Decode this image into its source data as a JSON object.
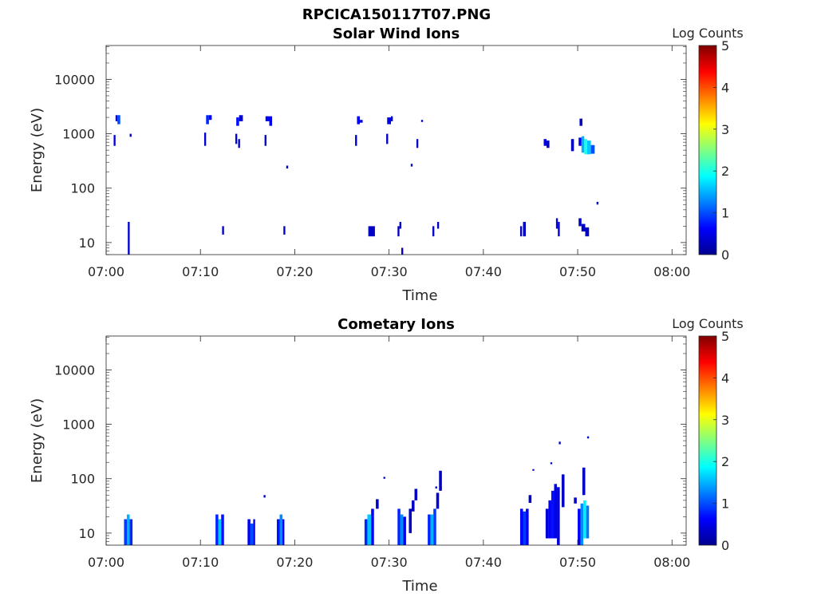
{
  "figure": {
    "filename": "RPCICA150117T07.PNG"
  },
  "colors": {
    "colormap": [
      "#00008f",
      "#0000ff",
      "#0080ff",
      "#00ffff",
      "#80ff80",
      "#ffff00",
      "#ff8000",
      "#ff0000",
      "#800000"
    ]
  },
  "chart_data": [
    {
      "type": "heatmap",
      "title": "Solar Wind Ions",
      "xlabel": "Time",
      "ylabel": "Energy (eV)",
      "colorbar_label": "Log Counts",
      "x_unit": "minutes after 07:00",
      "xlim": [
        0,
        61.5
      ],
      "ylim": [
        6,
        42000
      ],
      "y_scale": "log",
      "clim": [
        0,
        5
      ],
      "x_ticks": [
        0,
        10,
        20,
        30,
        40,
        50,
        60
      ],
      "x_tick_labels": [
        "07:00",
        "07:10",
        "07:20",
        "07:30",
        "07:40",
        "07:50",
        "08:00"
      ],
      "y_ticks": [
        10,
        100,
        1000,
        10000
      ],
      "y_tick_labels": [
        "10",
        "100",
        "1000",
        "10000"
      ],
      "cbar_ticks": [
        0,
        1,
        2,
        3,
        4,
        5
      ],
      "cbar_tick_labels": [
        "0",
        "1",
        "2",
        "3",
        "4",
        "5"
      ],
      "cells": [
        [
          1.0,
          1.2,
          1700,
          2200,
          0.6
        ],
        [
          1.2,
          1.5,
          1500,
          2200,
          1.0
        ],
        [
          0.8,
          1.0,
          600,
          950,
          0.5
        ],
        [
          2.5,
          2.7,
          880,
          1000,
          0.4
        ],
        [
          2.3,
          2.5,
          6,
          24,
          0.4
        ],
        [
          10.6,
          10.9,
          1500,
          2200,
          0.8
        ],
        [
          10.9,
          11.2,
          1800,
          2200,
          0.5
        ],
        [
          10.4,
          10.6,
          600,
          1050,
          0.4
        ],
        [
          12.3,
          12.5,
          14,
          20,
          0.3
        ],
        [
          13.8,
          14.1,
          1400,
          2000,
          0.7
        ],
        [
          14.1,
          14.5,
          1700,
          2200,
          0.4
        ],
        [
          13.7,
          13.9,
          650,
          1000,
          0.4
        ],
        [
          14.0,
          14.2,
          550,
          800,
          0.3
        ],
        [
          16.9,
          17.3,
          1700,
          2100,
          0.6
        ],
        [
          17.3,
          17.6,
          1400,
          2100,
          0.5
        ],
        [
          16.8,
          17.0,
          600,
          950,
          0.3
        ],
        [
          18.8,
          19.0,
          14,
          20,
          0.3
        ],
        [
          19.1,
          19.3,
          230,
          260,
          0.3
        ],
        [
          26.6,
          26.9,
          1500,
          2100,
          0.6
        ],
        [
          26.9,
          27.2,
          1600,
          1800,
          0.4
        ],
        [
          26.4,
          26.6,
          600,
          950,
          0.3
        ],
        [
          27.8,
          28.5,
          13,
          20,
          0.3
        ],
        [
          29.8,
          30.2,
          1500,
          2000,
          0.5
        ],
        [
          30.2,
          30.4,
          1700,
          2100,
          0.4
        ],
        [
          29.7,
          29.9,
          650,
          1000,
          0.3
        ],
        [
          30.9,
          31.1,
          13,
          20,
          0.3
        ],
        [
          31.1,
          31.3,
          18,
          24,
          0.3
        ],
        [
          31.3,
          31.5,
          6,
          8,
          0.3
        ],
        [
          32.3,
          32.5,
          250,
          280,
          0.3
        ],
        [
          32.9,
          33.1,
          550,
          800,
          0.3
        ],
        [
          33.4,
          33.6,
          1650,
          1800,
          0.3
        ],
        [
          34.6,
          34.8,
          13,
          20,
          0.3
        ],
        [
          35.1,
          35.3,
          18,
          24,
          0.3
        ],
        [
          43.9,
          44.1,
          13,
          20,
          0.3
        ],
        [
          44.2,
          44.5,
          13,
          24,
          0.3
        ],
        [
          46.4,
          46.7,
          600,
          800,
          0.4
        ],
        [
          46.7,
          47.0,
          550,
          750,
          0.3
        ],
        [
          47.7,
          47.9,
          18,
          28,
          0.4
        ],
        [
          47.9,
          48.1,
          13,
          24,
          0.3
        ],
        [
          49.3,
          49.6,
          480,
          800,
          0.3
        ],
        [
          50.2,
          50.5,
          1400,
          1900,
          0.3
        ],
        [
          50.1,
          50.4,
          600,
          850,
          0.6
        ],
        [
          50.4,
          50.7,
          450,
          900,
          1.5
        ],
        [
          50.7,
          51.0,
          420,
          800,
          2.0
        ],
        [
          51.0,
          51.4,
          420,
          750,
          1.6
        ],
        [
          51.4,
          51.8,
          430,
          620,
          1.0
        ],
        [
          50.1,
          50.4,
          20,
          28,
          0.3
        ],
        [
          50.4,
          50.8,
          16,
          22,
          0.3
        ],
        [
          50.8,
          51.2,
          13,
          19,
          0.3
        ],
        [
          52.0,
          52.2,
          50,
          56,
          0.3
        ]
      ]
    },
    {
      "type": "heatmap",
      "title": "Cometary Ions",
      "xlabel": "Time",
      "ylabel": "Energy (eV)",
      "colorbar_label": "Log Counts",
      "x_unit": "minutes after 07:00",
      "xlim": [
        0,
        61.5
      ],
      "ylim": [
        6,
        42000
      ],
      "y_scale": "log",
      "clim": [
        0,
        5
      ],
      "x_ticks": [
        0,
        10,
        20,
        30,
        40,
        50,
        60
      ],
      "x_tick_labels": [
        "07:00",
        "07:10",
        "07:20",
        "07:30",
        "07:40",
        "07:50",
        "08:00"
      ],
      "y_ticks": [
        10,
        100,
        1000,
        10000
      ],
      "y_tick_labels": [
        "10",
        "100",
        "1000",
        "10000"
      ],
      "cbar_ticks": [
        0,
        1,
        2,
        3,
        4,
        5
      ],
      "cbar_tick_labels": [
        "0",
        "1",
        "2",
        "3",
        "4",
        "5"
      ],
      "cells": [
        [
          1.9,
          2.2,
          6,
          18,
          0.9
        ],
        [
          2.2,
          2.5,
          6,
          22,
          1.5
        ],
        [
          2.5,
          2.8,
          6,
          18,
          0.8
        ],
        [
          11.6,
          11.9,
          6,
          22,
          0.8
        ],
        [
          11.9,
          12.2,
          6,
          18,
          1.6
        ],
        [
          12.2,
          12.5,
          6,
          22,
          0.7
        ],
        [
          15.0,
          15.3,
          6,
          18,
          0.6
        ],
        [
          15.3,
          15.6,
          6,
          15,
          1.0
        ],
        [
          15.6,
          15.8,
          6,
          18,
          0.5
        ],
        [
          16.7,
          16.9,
          45,
          50,
          0.3
        ],
        [
          18.1,
          18.4,
          6,
          18,
          0.7
        ],
        [
          18.4,
          18.7,
          6,
          22,
          1.3
        ],
        [
          18.7,
          18.9,
          6,
          18,
          0.6
        ],
        [
          27.4,
          27.7,
          6,
          18,
          0.8
        ],
        [
          27.7,
          28.1,
          6,
          22,
          1.6
        ],
        [
          28.1,
          28.4,
          6,
          28,
          0.6
        ],
        [
          28.6,
          28.9,
          28,
          42,
          0.3
        ],
        [
          29.4,
          29.6,
          100,
          108,
          0.3
        ],
        [
          30.9,
          31.2,
          6,
          28,
          0.8
        ],
        [
          31.2,
          31.5,
          6,
          22,
          1.3
        ],
        [
          31.5,
          31.8,
          6,
          20,
          0.5
        ],
        [
          32.1,
          32.4,
          10,
          28,
          0.3
        ],
        [
          32.4,
          32.7,
          25,
          40,
          0.3
        ],
        [
          32.7,
          33.0,
          40,
          65,
          0.3
        ],
        [
          34.1,
          34.4,
          6,
          22,
          0.8
        ],
        [
          34.4,
          34.7,
          6,
          22,
          1.5
        ],
        [
          34.7,
          35.0,
          6,
          28,
          0.9
        ],
        [
          35.0,
          35.3,
          28,
          55,
          0.4
        ],
        [
          35.3,
          35.6,
          60,
          140,
          0.3
        ],
        [
          34.9,
          35.1,
          66,
          72,
          0.3
        ],
        [
          43.9,
          44.2,
          6,
          28,
          0.6
        ],
        [
          44.2,
          44.5,
          6,
          25,
          0.9
        ],
        [
          44.5,
          44.8,
          6,
          28,
          0.6
        ],
        [
          44.8,
          45.1,
          36,
          50,
          0.3
        ],
        [
          45.2,
          45.4,
          140,
          150,
          0.3
        ],
        [
          46.6,
          46.9,
          8,
          28,
          0.4
        ],
        [
          46.9,
          47.2,
          8,
          40,
          0.6
        ],
        [
          47.2,
          47.5,
          8,
          60,
          0.7
        ],
        [
          47.5,
          47.8,
          8,
          80,
          0.5
        ],
        [
          47.8,
          48.1,
          6,
          70,
          0.4
        ],
        [
          47.1,
          47.3,
          185,
          200,
          0.3
        ],
        [
          48.0,
          48.2,
          430,
          480,
          0.3
        ],
        [
          48.3,
          48.6,
          30,
          120,
          0.3
        ],
        [
          49.6,
          49.9,
          35,
          45,
          0.3
        ],
        [
          50.0,
          50.3,
          6,
          28,
          0.6
        ],
        [
          50.3,
          50.6,
          6,
          35,
          1.3
        ],
        [
          50.6,
          50.9,
          8,
          40,
          1.8
        ],
        [
          50.9,
          51.2,
          8,
          32,
          1.2
        ],
        [
          50.5,
          50.8,
          50,
          160,
          0.3
        ],
        [
          51.0,
          51.2,
          550,
          600,
          0.3
        ]
      ]
    }
  ]
}
